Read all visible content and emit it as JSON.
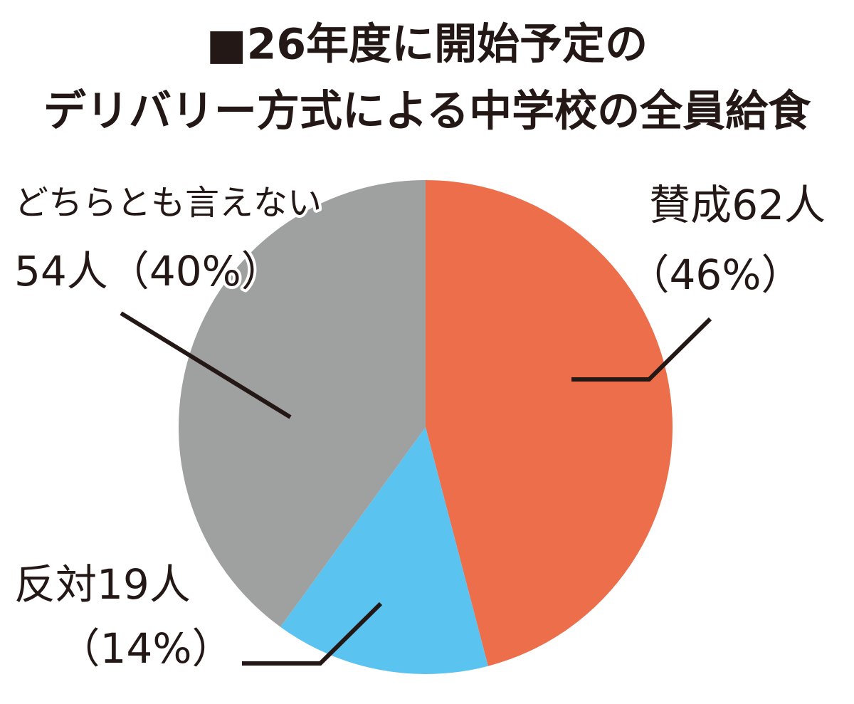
{
  "chart_data": {
    "type": "pie",
    "title": [
      "■26年度に開始予定の",
      "デリバリー方式による中学校の全員給食"
    ],
    "categories": [
      "賛成",
      "反対",
      "どちらとも言えない"
    ],
    "values": [
      62,
      19,
      54
    ],
    "value_labels": [
      "62人",
      "19人",
      "54人"
    ],
    "percents": [
      46,
      14,
      40
    ],
    "percent_labels": [
      "（46%）",
      "（14%）",
      "（40%）"
    ],
    "colors": [
      "#ec6e4a",
      "#5bc3f0",
      "#9fa0a0"
    ]
  }
}
